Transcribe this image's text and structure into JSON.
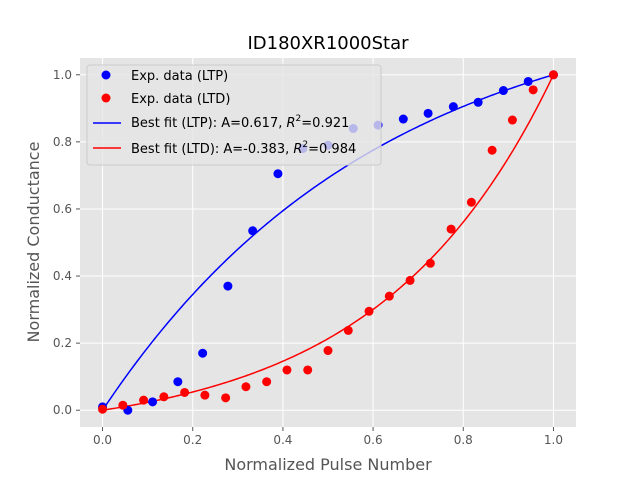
{
  "chart_data": {
    "type": "scatter",
    "title": "ID180XR1000Star",
    "xlabel": "Normalized Pulse Number",
    "ylabel": "Normalized Conductance",
    "xlim": [
      -0.05,
      1.05
    ],
    "ylim": [
      -0.05,
      1.05
    ],
    "xticks": [
      0.0,
      0.2,
      0.4,
      0.6,
      0.8,
      1.0
    ],
    "yticks": [
      0.0,
      0.2,
      0.4,
      0.6,
      0.8,
      1.0
    ],
    "xtick_labels": [
      "0.0",
      "0.2",
      "0.4",
      "0.6",
      "0.8",
      "1.0"
    ],
    "ytick_labels": [
      "0.0",
      "0.2",
      "0.4",
      "0.6",
      "0.8",
      "1.0"
    ],
    "grid": true,
    "legend_position": "upper-left",
    "series": [
      {
        "name": "Exp. data (LTP)",
        "kind": "scatter",
        "color": "#0000ff",
        "x": [
          0.0,
          0.056,
          0.111,
          0.167,
          0.222,
          0.278,
          0.333,
          0.389,
          0.444,
          0.5,
          0.556,
          0.611,
          0.667,
          0.722,
          0.778,
          0.833,
          0.889,
          0.944,
          1.0
        ],
        "y": [
          0.01,
          0.0,
          0.025,
          0.085,
          0.17,
          0.37,
          0.535,
          0.705,
          0.78,
          0.79,
          0.84,
          0.85,
          0.868,
          0.885,
          0.905,
          0.918,
          0.953,
          0.98,
          1.0
        ]
      },
      {
        "name": "Exp. data (LTD)",
        "kind": "scatter",
        "color": "#ff0000",
        "x": [
          0.0,
          0.045,
          0.091,
          0.136,
          0.182,
          0.227,
          0.273,
          0.318,
          0.364,
          0.409,
          0.455,
          0.5,
          0.545,
          0.591,
          0.636,
          0.682,
          0.727,
          0.773,
          0.818,
          0.864,
          0.909,
          0.955,
          1.0
        ],
        "y": [
          0.003,
          0.015,
          0.03,
          0.04,
          0.053,
          0.045,
          0.037,
          0.07,
          0.085,
          0.12,
          0.12,
          0.178,
          0.238,
          0.295,
          0.34,
          0.387,
          0.438,
          0.54,
          0.62,
          0.775,
          0.865,
          0.955,
          1.0
        ]
      },
      {
        "name": "Best fit (LTP): A=0.617, R²=0.921",
        "kind": "line",
        "color": "#0000ff",
        "A": 0.617
      },
      {
        "name": "Best fit (LTD): A=-0.383, R²=0.984",
        "kind": "line",
        "color": "#ff0000",
        "A": -0.383
      }
    ],
    "legend": [
      {
        "marker": "dot",
        "color": "#0000ff",
        "label": "Exp. data (LTP)"
      },
      {
        "marker": "dot",
        "color": "#ff0000",
        "label": "Exp. data (LTD)"
      },
      {
        "marker": "line",
        "color": "#0000ff",
        "label_prefix": "Best fit (LTP): A=0.617, ",
        "r2": "=0.921"
      },
      {
        "marker": "line",
        "color": "#ff0000",
        "label_prefix": "Best fit (LTD): A=-0.383, ",
        "r2": "=0.984"
      }
    ],
    "r2_symbol": "R",
    "r2_exponent": "2",
    "colors": {
      "plot_background": "#e5e5e5",
      "grid": "#ffffff",
      "text": "#555555",
      "title": "#000000"
    }
  }
}
